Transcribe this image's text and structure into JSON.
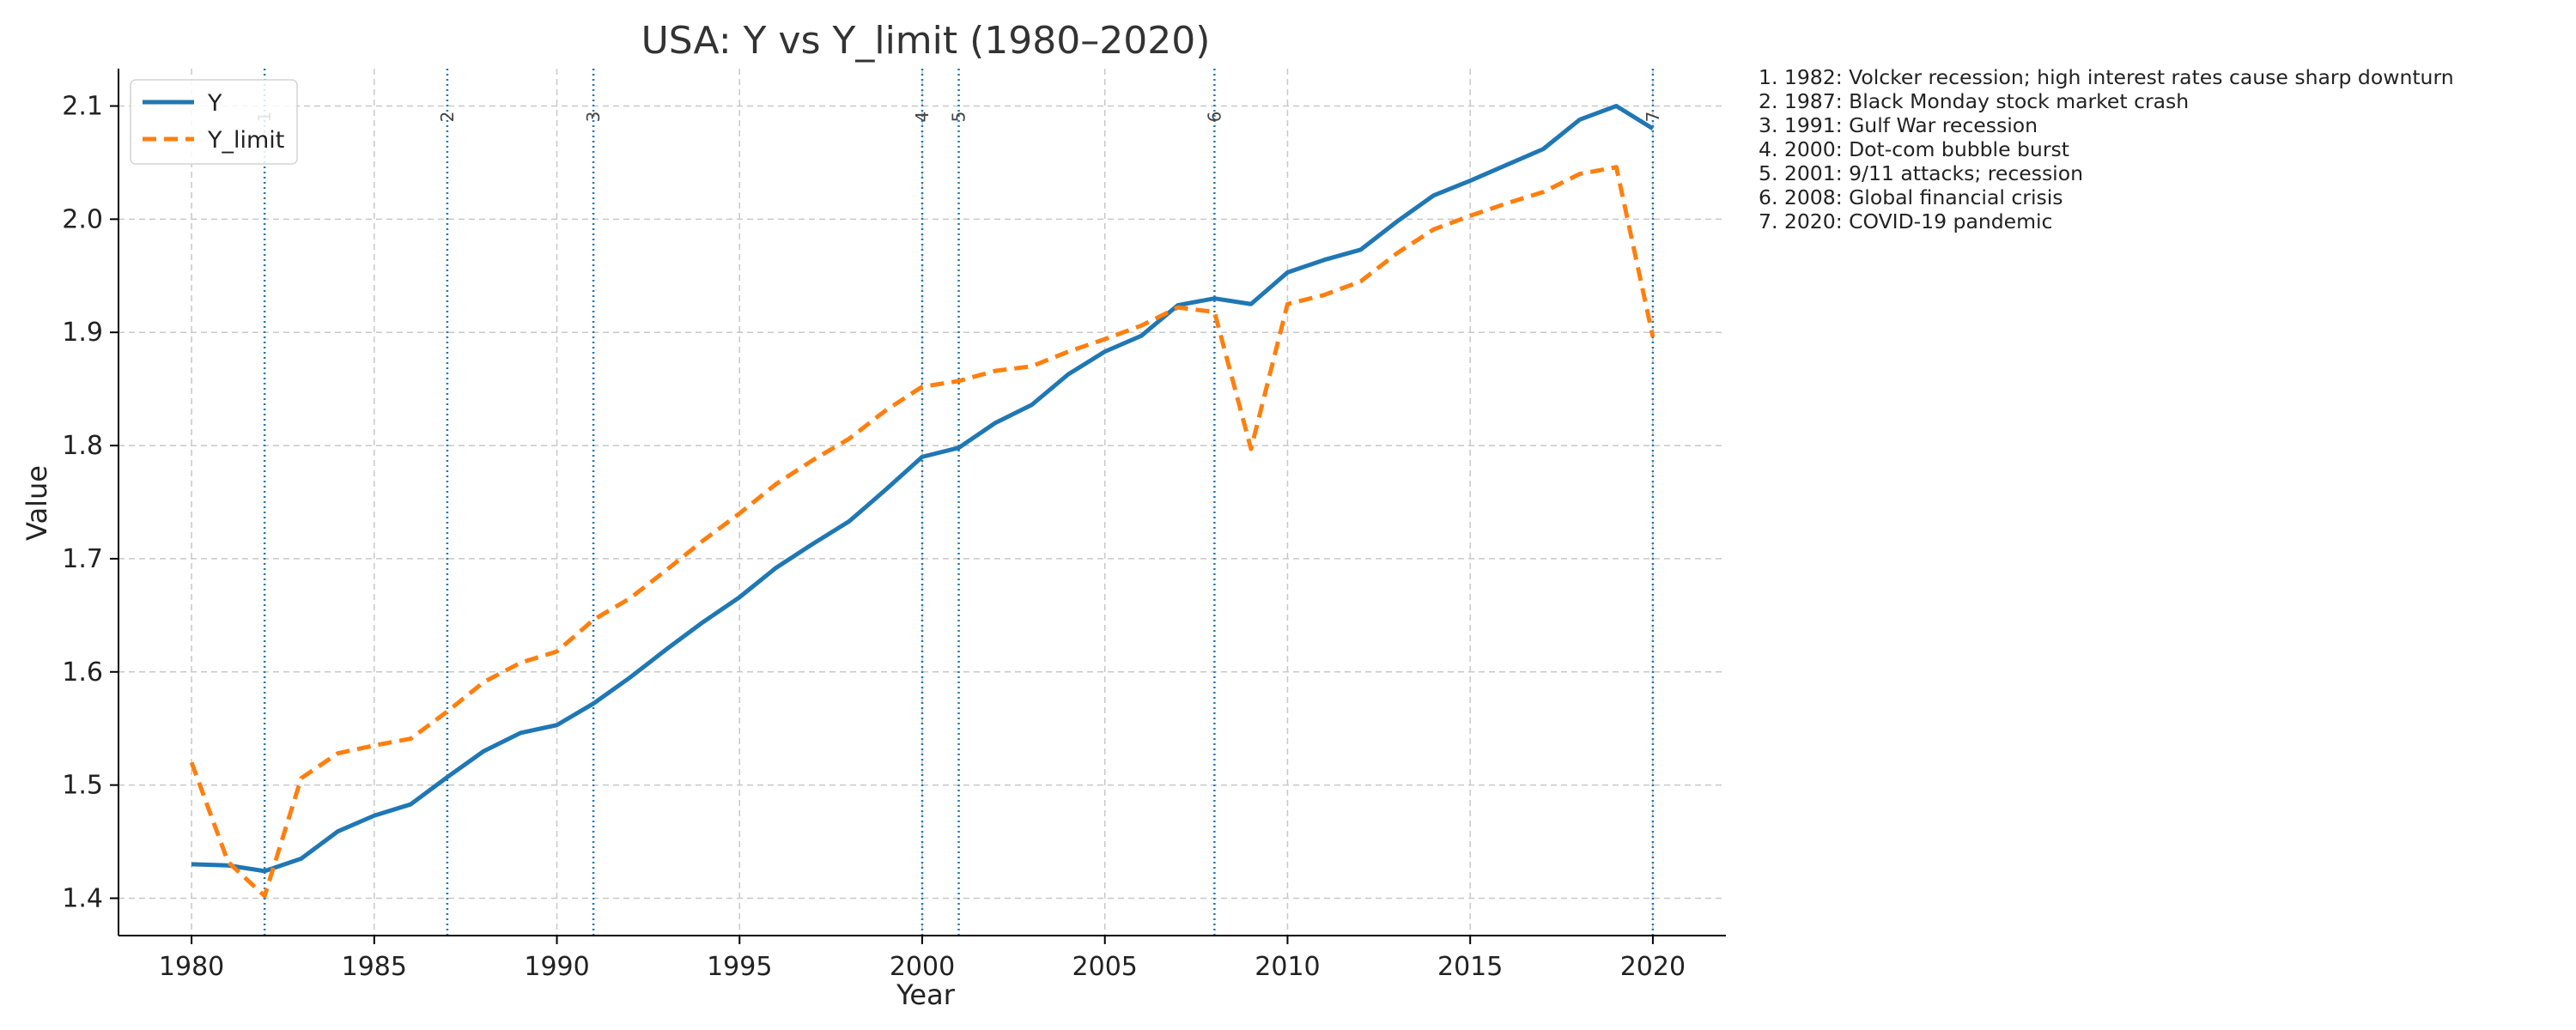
{
  "chart_data": {
    "type": "line",
    "title": "USA: Y vs Y_limit (1980–2020)",
    "xlabel": "Year",
    "ylabel": "Value",
    "xlim": [
      1978,
      2022
    ],
    "ylim": [
      1.367,
      2.133
    ],
    "xticks": [
      1980,
      1985,
      1990,
      1995,
      2000,
      2005,
      2010,
      2015,
      2020
    ],
    "yticks": [
      1.4,
      1.5,
      1.6,
      1.7,
      1.8,
      1.9,
      2.0,
      2.1
    ],
    "grid": true,
    "legend_position": "top-left",
    "x": [
      1980,
      1981,
      1982,
      1983,
      1984,
      1985,
      1986,
      1987,
      1988,
      1989,
      1990,
      1991,
      1992,
      1993,
      1994,
      1995,
      1996,
      1997,
      1998,
      1999,
      2000,
      2001,
      2002,
      2003,
      2004,
      2005,
      2006,
      2007,
      2008,
      2009,
      2010,
      2011,
      2012,
      2013,
      2014,
      2015,
      2016,
      2017,
      2018,
      2019,
      2020
    ],
    "series": [
      {
        "name": "Y",
        "color": "#1f77b4",
        "style": "solid",
        "values": [
          1.43,
          1.429,
          1.424,
          1.435,
          1.459,
          1.473,
          1.483,
          1.507,
          1.53,
          1.546,
          1.553,
          1.572,
          1.595,
          1.62,
          1.644,
          1.666,
          1.692,
          1.713,
          1.733,
          1.761,
          1.79,
          1.798,
          1.82,
          1.836,
          1.863,
          1.883,
          1.897,
          1.924,
          1.93,
          1.925,
          1.953,
          1.964,
          1.973,
          1.998,
          2.021,
          2.034,
          2.048,
          2.062,
          2.088,
          2.1,
          2.08
        ]
      },
      {
        "name": "Y_limit",
        "color": "#ff7f0e",
        "style": "dashed",
        "values": [
          1.52,
          1.432,
          1.402,
          1.506,
          1.528,
          1.535,
          1.541,
          1.565,
          1.591,
          1.608,
          1.618,
          1.646,
          1.665,
          1.69,
          1.716,
          1.74,
          1.766,
          1.787,
          1.806,
          1.831,
          1.852,
          1.857,
          1.866,
          1.87,
          1.883,
          1.894,
          1.906,
          1.922,
          1.918,
          1.797,
          1.925,
          1.933,
          1.945,
          1.97,
          1.991,
          2.003,
          2.014,
          2.024,
          2.04,
          2.046,
          1.896
        ]
      }
    ],
    "events": [
      {
        "num": "1",
        "year": 1982,
        "text": "1. 1982: Volcker recession; high interest rates cause sharp downturn"
      },
      {
        "num": "2",
        "year": 1987,
        "text": "2. 1987: Black Monday stock market crash"
      },
      {
        "num": "3",
        "year": 1991,
        "text": "3. 1991: Gulf War recession"
      },
      {
        "num": "4",
        "year": 2000,
        "text": "4. 2000: Dot-com bubble burst"
      },
      {
        "num": "5",
        "year": 2001,
        "text": "5. 2001: 9/11 attacks; recession"
      },
      {
        "num": "6",
        "year": 2008,
        "text": "6. 2008: Global financial crisis"
      },
      {
        "num": "7",
        "year": 2020,
        "text": "7. 2020: COVID-19 pandemic"
      }
    ],
    "event_line_color": "#1f77b4"
  }
}
